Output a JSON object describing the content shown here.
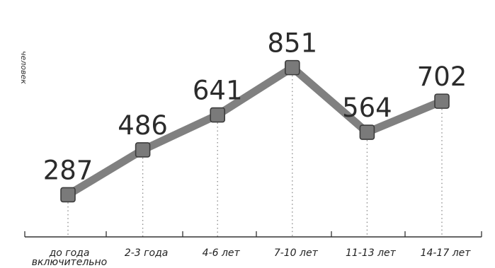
{
  "chart_data": {
    "type": "line",
    "title": "",
    "xlabel": "",
    "ylabel": "человек",
    "categories": [
      "до года включительно",
      "2-3 года",
      "4-6 лет",
      "7-10 лет",
      "11-13 лет",
      "14-17 лет"
    ],
    "category_lines": [
      [
        "до года",
        "включительно"
      ],
      [
        "2-3 года"
      ],
      [
        "4-6 лет"
      ],
      [
        "7-10 лет"
      ],
      [
        "11-13 лет"
      ],
      [
        "14-17 лет"
      ]
    ],
    "values": [
      287,
      486,
      641,
      851,
      564,
      702
    ],
    "ylim": [
      100,
      900
    ],
    "grid": false,
    "colors": {
      "line": "#808080",
      "marker_fill": "#7a7a7a",
      "marker_stroke": "#3d3d3d",
      "axis": "#333333",
      "dotted": "#8a8a8a",
      "text": "#2b2b2b"
    }
  }
}
